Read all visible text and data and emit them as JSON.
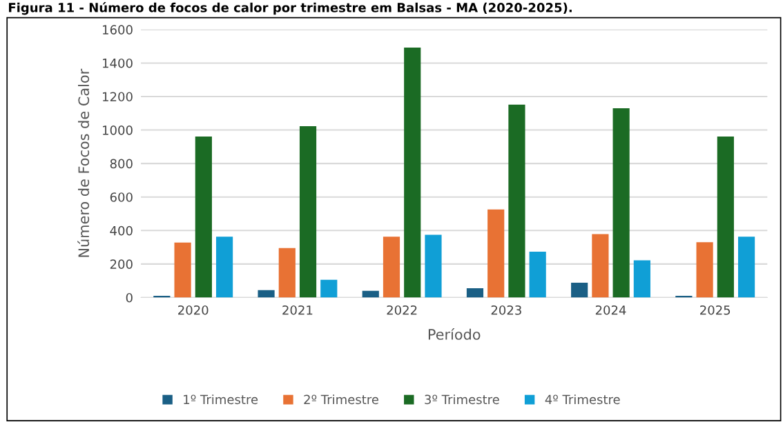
{
  "chart_data": {
    "type": "bar",
    "title": "Figura 11 - Número de focos de calor por trimestre em Balsas - MA (2020-2025).",
    "xlabel": "Período",
    "ylabel": "Número de Focos de Calor",
    "categories": [
      "2020",
      "2021",
      "2022",
      "2023",
      "2024",
      "2025"
    ],
    "series": [
      {
        "name": "1º Trimestre",
        "color": "#1a5f85",
        "values": [
          10,
          44,
          40,
          55,
          88,
          10
        ]
      },
      {
        "name": "2º Trimestre",
        "color": "#e87234",
        "values": [
          328,
          295,
          363,
          526,
          379,
          330
        ]
      },
      {
        "name": "3º Trimestre",
        "color": "#1b6b24",
        "values": [
          961,
          1023,
          1492,
          1152,
          1130,
          961
        ]
      },
      {
        "name": "4º Trimestre",
        "color": "#109fd6",
        "values": [
          363,
          106,
          374,
          274,
          222,
          363
        ]
      }
    ],
    "ylim": [
      0,
      1600
    ],
    "yticks": [
      0,
      200,
      400,
      600,
      800,
      1000,
      1200,
      1400,
      1600
    ],
    "grid": "y",
    "legend": "bottom"
  }
}
